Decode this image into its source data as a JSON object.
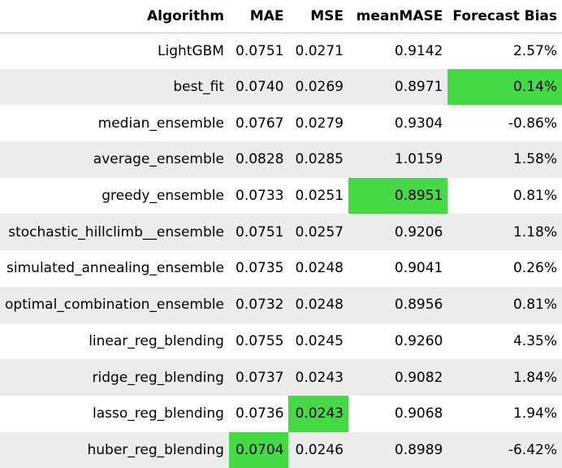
{
  "headers": [
    "Algorithm",
    "MAE",
    "MSE",
    "meanMASE",
    "Forecast Bias"
  ],
  "highlight_color": "#45d945",
  "rows": [
    {
      "algorithm": "LightGBM",
      "mae": "0.0751",
      "mse": "0.0271",
      "meanmase": "0.9142",
      "bias": "2.57%"
    },
    {
      "algorithm": "best_fit",
      "mae": "0.0740",
      "mse": "0.0269",
      "meanmase": "0.8971",
      "bias": "0.14%"
    },
    {
      "algorithm": "median_ensemble",
      "mae": "0.0767",
      "mse": "0.0279",
      "meanmase": "0.9304",
      "bias": "-0.86%"
    },
    {
      "algorithm": "average_ensemble",
      "mae": "0.0828",
      "mse": "0.0285",
      "meanmase": "1.0159",
      "bias": "1.58%"
    },
    {
      "algorithm": "greedy_ensemble",
      "mae": "0.0733",
      "mse": "0.0251",
      "meanmase": "0.8951",
      "bias": "0.81%"
    },
    {
      "algorithm": "stochastic_hillclimb__ensemble",
      "mae": "0.0751",
      "mse": "0.0257",
      "meanmase": "0.9206",
      "bias": "1.18%"
    },
    {
      "algorithm": "simulated_annealing_ensemble",
      "mae": "0.0735",
      "mse": "0.0248",
      "meanmase": "0.9041",
      "bias": "0.26%"
    },
    {
      "algorithm": "optimal_combination_ensemble",
      "mae": "0.0732",
      "mse": "0.0248",
      "meanmase": "0.8956",
      "bias": "0.81%"
    },
    {
      "algorithm": "linear_reg_blending",
      "mae": "0.0755",
      "mse": "0.0245",
      "meanmase": "0.9260",
      "bias": "4.35%"
    },
    {
      "algorithm": "ridge_reg_blending",
      "mae": "0.0737",
      "mse": "0.0243",
      "meanmase": "0.9082",
      "bias": "1.84%"
    },
    {
      "algorithm": "lasso_reg_blending",
      "mae": "0.0736",
      "mse": "0.0243",
      "meanmase": "0.9068",
      "bias": "1.94%"
    },
    {
      "algorithm": "huber_reg_blending",
      "mae": "0.0704",
      "mse": "0.0246",
      "meanmase": "0.8989",
      "bias": "-6.42%"
    }
  ]
}
